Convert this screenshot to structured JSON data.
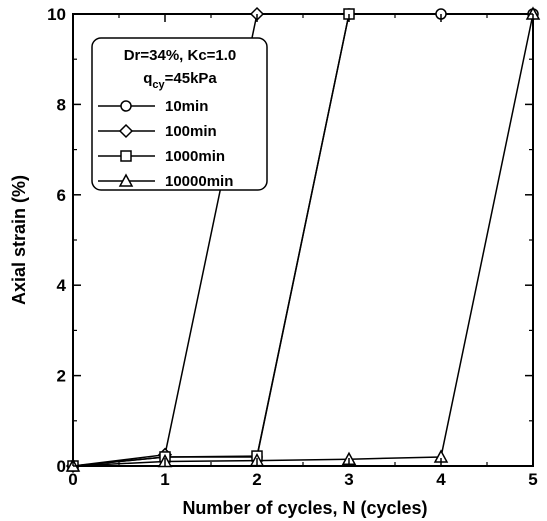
{
  "chart_data": {
    "type": "line",
    "title": "",
    "xlabel": "Number of cycles, N (cycles)",
    "ylabel": "Axial strain (%)",
    "xlim": [
      0,
      5
    ],
    "ylim": [
      0,
      10
    ],
    "xticks": [
      0,
      1,
      2,
      3,
      4,
      5
    ],
    "yticks": [
      0,
      2,
      4,
      6,
      8,
      10
    ],
    "xtick_labels": [
      "0",
      "1",
      "2",
      "3",
      "4",
      "5"
    ],
    "ytick_labels": [
      "0",
      "2",
      "4",
      "6",
      "8",
      "10"
    ],
    "grid": false,
    "legend": {
      "placement": "top-left",
      "header_line1": "Dr=34%, Kc=1.0",
      "header_q": "q",
      "header_sub": "cy",
      "header_value": "=45kPa"
    },
    "series": [
      {
        "name": "10min",
        "marker": "circle",
        "x": [
          0,
          1,
          2,
          3,
          4,
          5
        ],
        "y": [
          0,
          0.2,
          0.2,
          10,
          10,
          10
        ]
      },
      {
        "name": "100min",
        "marker": "diamond",
        "x": [
          0,
          1,
          2
        ],
        "y": [
          0,
          0.25,
          10
        ]
      },
      {
        "name": "1000min",
        "marker": "square",
        "x": [
          0,
          1,
          2,
          3
        ],
        "y": [
          0,
          0.2,
          0.22,
          10
        ]
      },
      {
        "name": "10000min",
        "marker": "triangle",
        "x": [
          0,
          1,
          2,
          3,
          4,
          5
        ],
        "y": [
          0,
          0.1,
          0.12,
          0.15,
          0.2,
          10
        ]
      }
    ]
  }
}
